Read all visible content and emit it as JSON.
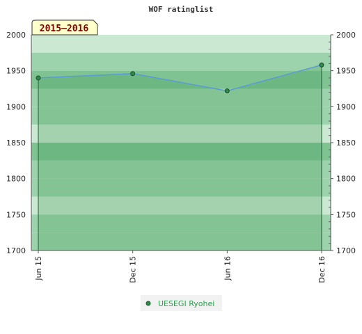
{
  "chart_data": {
    "type": "area",
    "title": "WOF ratinglist",
    "season_label": "2015–2016",
    "categories": [
      "Jun 15",
      "Dec 15",
      "Jun 16",
      "Dec 16"
    ],
    "series": [
      {
        "name": "UESEGI Ryohei",
        "values": [
          1940,
          1946,
          1922,
          1958
        ]
      }
    ],
    "ylim": [
      1700,
      2000
    ],
    "y_ticks": [
      2000,
      1950,
      1900,
      1850,
      1800,
      1750,
      1700
    ],
    "y_axis_left": true,
    "y_axis_right": true,
    "legend_position": "bottom",
    "colors": {
      "line": "#5b9bd5",
      "marker_fill": "#2f8a4a",
      "area_fill": "#3f9b57",
      "band_dark": "#7fc393",
      "band_mid": "#9dd3ac",
      "band_light": "#cbe8d2",
      "season_bg": "#ffffcc"
    }
  }
}
